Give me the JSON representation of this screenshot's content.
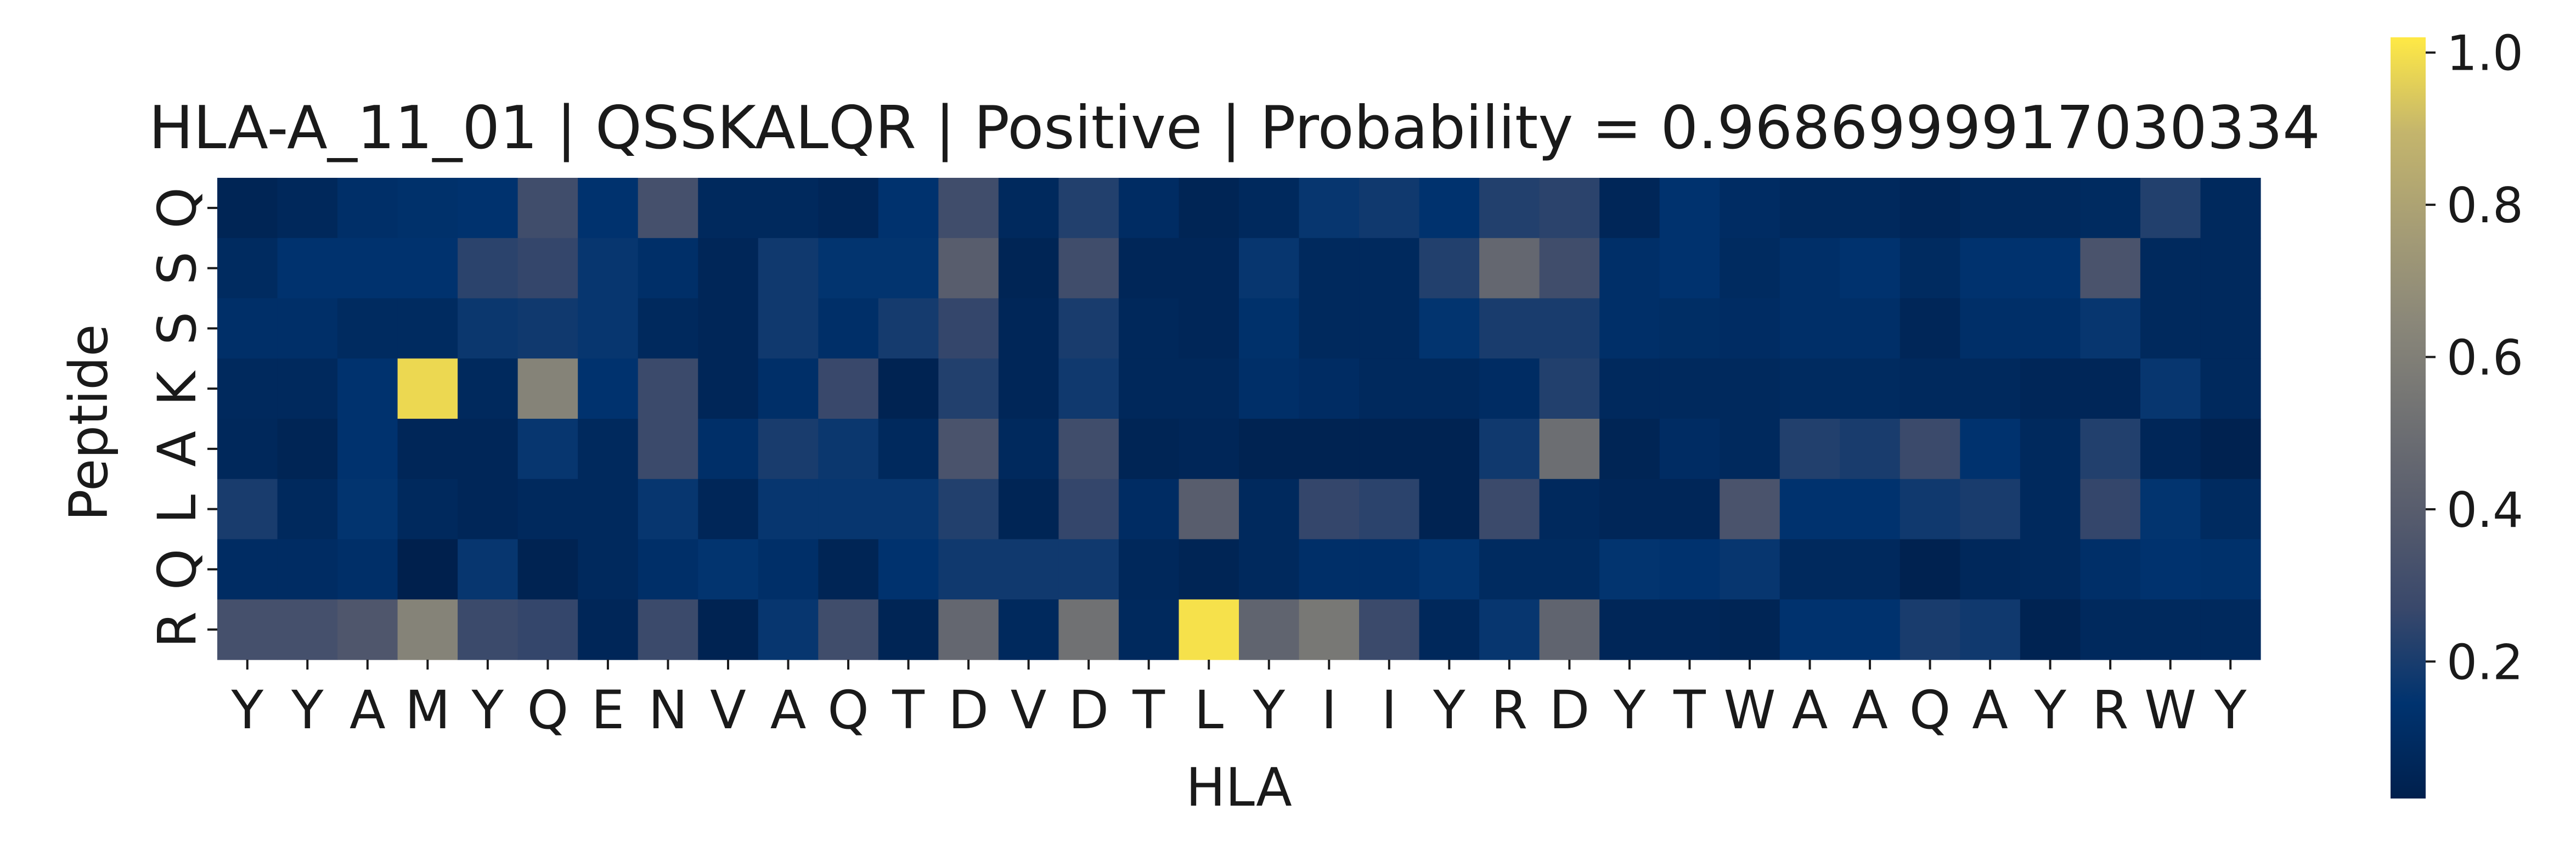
{
  "chart_data": {
    "type": "heatmap",
    "title": "HLA-A_11_01 | QSSKALQR | Positive | Probability = 0.9686999917030334",
    "xlabel": "HLA",
    "ylabel": "Peptide",
    "x_tick_labels": [
      "Y",
      "Y",
      "A",
      "M",
      "Y",
      "Q",
      "E",
      "N",
      "V",
      "A",
      "Q",
      "T",
      "D",
      "V",
      "D",
      "T",
      "L",
      "Y",
      "I",
      "I",
      "Y",
      "R",
      "D",
      "Y",
      "T",
      "W",
      "A",
      "A",
      "Q",
      "A",
      "Y",
      "R",
      "W",
      "Y"
    ],
    "y_tick_labels": [
      "Q",
      "S",
      "S",
      "K",
      "A",
      "L",
      "Q",
      "R"
    ],
    "colorbar": {
      "colormap": "cividis",
      "range": [
        0.02,
        1.02
      ],
      "tick_labels": [
        "0.2",
        "0.4",
        "0.6",
        "0.8",
        "1.0"
      ],
      "tick_values": [
        0.2,
        0.4,
        0.6,
        0.8,
        1.0
      ]
    },
    "values": [
      [
        0.05,
        0.07,
        0.12,
        0.13,
        0.14,
        0.3,
        0.14,
        0.32,
        0.08,
        0.08,
        0.06,
        0.14,
        0.3,
        0.08,
        0.22,
        0.1,
        0.05,
        0.08,
        0.16,
        0.18,
        0.14,
        0.22,
        0.24,
        0.06,
        0.14,
        0.1,
        0.08,
        0.08,
        0.06,
        0.08,
        0.08,
        0.09,
        0.22,
        0.08
      ],
      [
        0.09,
        0.14,
        0.14,
        0.14,
        0.24,
        0.26,
        0.16,
        0.12,
        0.06,
        0.18,
        0.15,
        0.15,
        0.4,
        0.05,
        0.3,
        0.06,
        0.06,
        0.16,
        0.08,
        0.08,
        0.22,
        0.46,
        0.3,
        0.12,
        0.14,
        0.09,
        0.12,
        0.14,
        0.09,
        0.14,
        0.14,
        0.34,
        0.08,
        0.08
      ],
      [
        0.12,
        0.12,
        0.09,
        0.09,
        0.17,
        0.18,
        0.16,
        0.08,
        0.06,
        0.18,
        0.12,
        0.19,
        0.26,
        0.06,
        0.2,
        0.07,
        0.06,
        0.13,
        0.08,
        0.08,
        0.15,
        0.2,
        0.2,
        0.12,
        0.11,
        0.1,
        0.12,
        0.12,
        0.06,
        0.12,
        0.12,
        0.16,
        0.08,
        0.08
      ],
      [
        0.08,
        0.08,
        0.14,
        0.98,
        0.08,
        0.62,
        0.14,
        0.28,
        0.06,
        0.12,
        0.27,
        0.04,
        0.22,
        0.06,
        0.18,
        0.07,
        0.07,
        0.12,
        0.1,
        0.08,
        0.08,
        0.1,
        0.22,
        0.08,
        0.08,
        0.08,
        0.09,
        0.09,
        0.08,
        0.08,
        0.06,
        0.06,
        0.16,
        0.08
      ],
      [
        0.07,
        0.05,
        0.14,
        0.06,
        0.06,
        0.16,
        0.08,
        0.28,
        0.12,
        0.2,
        0.17,
        0.08,
        0.34,
        0.08,
        0.3,
        0.05,
        0.06,
        0.04,
        0.04,
        0.04,
        0.04,
        0.18,
        0.5,
        0.05,
        0.1,
        0.08,
        0.22,
        0.2,
        0.28,
        0.14,
        0.08,
        0.22,
        0.06,
        0.03
      ],
      [
        0.2,
        0.08,
        0.15,
        0.08,
        0.06,
        0.08,
        0.08,
        0.16,
        0.06,
        0.16,
        0.16,
        0.16,
        0.22,
        0.05,
        0.26,
        0.1,
        0.4,
        0.08,
        0.26,
        0.24,
        0.04,
        0.28,
        0.08,
        0.06,
        0.06,
        0.34,
        0.14,
        0.14,
        0.18,
        0.2,
        0.08,
        0.26,
        0.15,
        0.09
      ],
      [
        0.1,
        0.1,
        0.12,
        0.02,
        0.16,
        0.04,
        0.08,
        0.12,
        0.15,
        0.12,
        0.05,
        0.14,
        0.18,
        0.18,
        0.18,
        0.07,
        0.05,
        0.08,
        0.12,
        0.12,
        0.15,
        0.09,
        0.09,
        0.15,
        0.14,
        0.16,
        0.08,
        0.08,
        0.03,
        0.07,
        0.08,
        0.12,
        0.14,
        0.13
      ],
      [
        0.32,
        0.32,
        0.36,
        0.62,
        0.28,
        0.26,
        0.06,
        0.28,
        0.04,
        0.16,
        0.3,
        0.05,
        0.46,
        0.08,
        0.52,
        0.08,
        1.0,
        0.44,
        0.56,
        0.28,
        0.07,
        0.16,
        0.44,
        0.06,
        0.06,
        0.05,
        0.14,
        0.14,
        0.2,
        0.18,
        0.04,
        0.08,
        0.08,
        0.08
      ]
    ]
  }
}
